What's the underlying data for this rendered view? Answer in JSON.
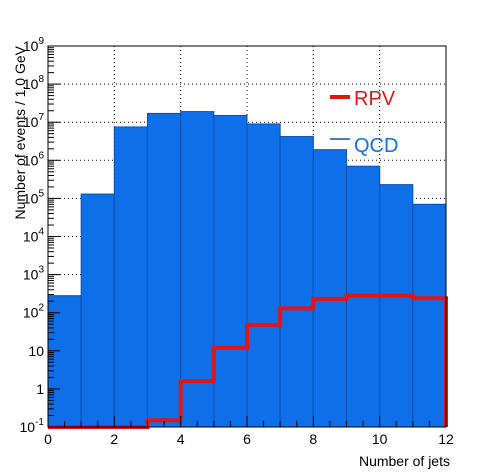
{
  "chart_data": {
    "type": "histogram",
    "xlabel": "Number of jets",
    "ylabel": "Number of events / 1.0 GeV",
    "xlim": [
      0,
      12
    ],
    "ylim": [
      0.1,
      1000000000
    ],
    "yscale": "log",
    "grid": true,
    "bin_edges": [
      0,
      1,
      2,
      3,
      4,
      5,
      6,
      7,
      8,
      9,
      10,
      11,
      12
    ],
    "x_ticks": [
      "0",
      "2",
      "4",
      "6",
      "8",
      "10",
      "12"
    ],
    "y_ticks": [
      {
        "value": 0.1,
        "base": "10",
        "exp": "-1"
      },
      {
        "value": 1,
        "base": "1",
        "exp": ""
      },
      {
        "value": 10,
        "base": "10",
        "exp": ""
      },
      {
        "value": 100,
        "base": "10",
        "exp": "2"
      },
      {
        "value": 1000,
        "base": "10",
        "exp": "3"
      },
      {
        "value": 10000,
        "base": "10",
        "exp": "4"
      },
      {
        "value": 100000,
        "base": "10",
        "exp": "5"
      },
      {
        "value": 1000000,
        "base": "10",
        "exp": "6"
      },
      {
        "value": 10000000,
        "base": "10",
        "exp": "7"
      },
      {
        "value": 100000000,
        "base": "10",
        "exp": "8"
      },
      {
        "value": 1000000000,
        "base": "10",
        "exp": "9"
      }
    ],
    "legend_position": "top-right",
    "series": [
      {
        "name": "QCD",
        "style": "filled",
        "color": "#0f6fe8",
        "values": [
          280,
          130000,
          7500000,
          17000000,
          19000000,
          15000000,
          9000000,
          4200000,
          1900000,
          700000,
          230000,
          70000
        ]
      },
      {
        "name": "RPV",
        "style": "line",
        "color": "#e31414",
        "values": [
          0.1,
          0.1,
          0.1,
          0.15,
          1.6,
          12,
          48,
          130,
          230,
          280,
          280,
          240
        ]
      }
    ]
  }
}
